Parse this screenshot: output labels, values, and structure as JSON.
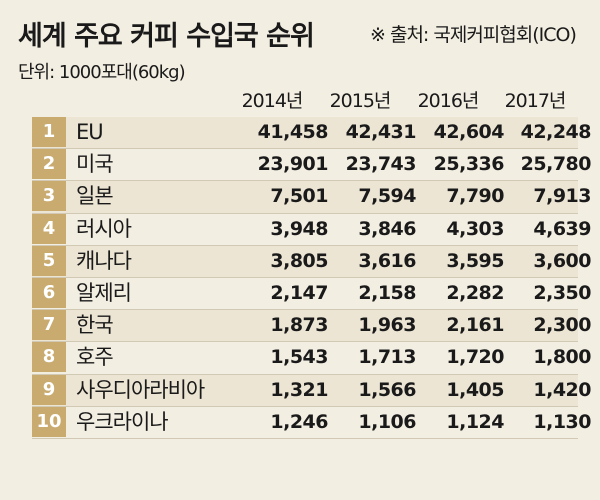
{
  "chart_data": {
    "type": "table",
    "title": "세계 주요 커피 수입국 순위",
    "source": "※ 출처: 국제커피협회(ICO)",
    "unit": "단위: 1000포대(60kg)",
    "columns": [
      "2014년",
      "2015년",
      "2016년",
      "2017년"
    ],
    "rows": [
      {
        "rank": "1",
        "country": "EU",
        "values": [
          "41,458",
          "42,431",
          "42,604",
          "42,248"
        ]
      },
      {
        "rank": "2",
        "country": "미국",
        "values": [
          "23,901",
          "23,743",
          "25,336",
          "25,780"
        ]
      },
      {
        "rank": "3",
        "country": "일본",
        "values": [
          "7,501",
          "7,594",
          "7,790",
          "7,913"
        ]
      },
      {
        "rank": "4",
        "country": "러시아",
        "values": [
          "3,948",
          "3,846",
          "4,303",
          "4,639"
        ]
      },
      {
        "rank": "5",
        "country": "캐나다",
        "values": [
          "3,805",
          "3,616",
          "3,595",
          "3,600"
        ]
      },
      {
        "rank": "6",
        "country": "알제리",
        "values": [
          "2,147",
          "2,158",
          "2,282",
          "2,350"
        ]
      },
      {
        "rank": "7",
        "country": "한국",
        "values": [
          "1,873",
          "1,963",
          "2,161",
          "2,300"
        ]
      },
      {
        "rank": "8",
        "country": "호주",
        "values": [
          "1,543",
          "1,713",
          "1,720",
          "1,800"
        ]
      },
      {
        "rank": "9",
        "country": "사우디아라비아",
        "values": [
          "1,321",
          "1,566",
          "1,405",
          "1,420"
        ]
      },
      {
        "rank": "10",
        "country": "우크라이나",
        "values": [
          "1,246",
          "1,106",
          "1,124",
          "1,130"
        ]
      }
    ],
    "colors": {
      "rank_bg": "#c9ab70",
      "background": "#f3eee2"
    }
  }
}
